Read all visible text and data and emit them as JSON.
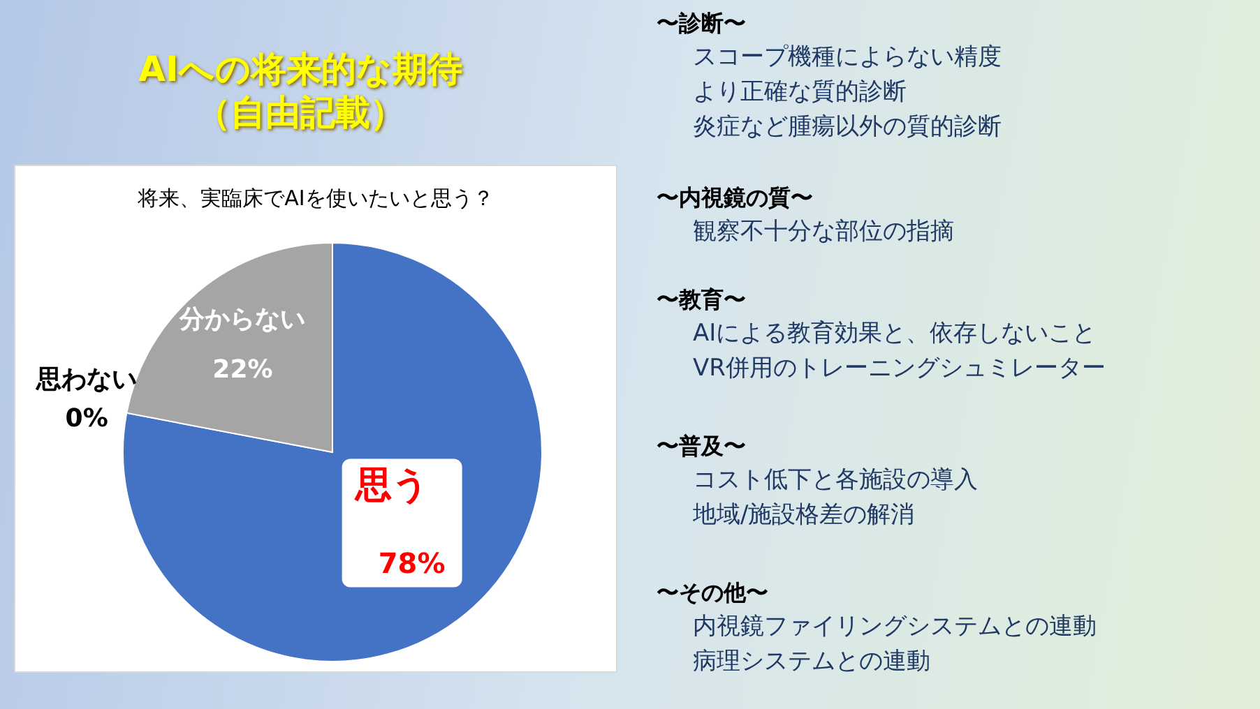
{
  "chart_data": {
    "type": "pie",
    "title": "AIへの将来的な期待（自由記載）",
    "subtitle": "将来、実臨床でAIを使いたいと思う？",
    "categories": [
      "思う",
      "思わない",
      "分からない"
    ],
    "values": [
      78,
      0,
      22
    ],
    "colors": [
      "#4472c4",
      "#ed7d31",
      "#a5a5a5"
    ],
    "data_labels": true,
    "value_labels": [
      "78%",
      "0%",
      "22%"
    ],
    "legend": false,
    "annotations": [
      "〜診断〜",
      "スコープ機種によらない精度",
      "より正確な質的診断",
      "炎症など腫瘍以外の質的診断",
      "〜内視鏡の質〜",
      "観察不十分な部位の指摘",
      "〜教育〜",
      "AIによる教育効果と、依存しないこと",
      "VR併用のトレーニングシュミレーター",
      "〜普及〜",
      "コスト低下と各施設の導入",
      "地域/施設格差の解消",
      "〜その他〜",
      "内視鏡ファイリングシステムとの連動",
      "病理システムとの連動"
    ]
  }
}
